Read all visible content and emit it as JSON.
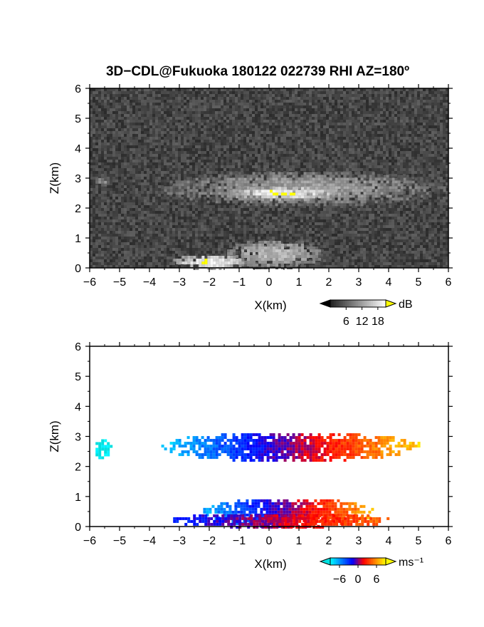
{
  "title": "3D−CDL@Fukuoka 180122 022739 RHI AZ=180º",
  "chart_data": [
    {
      "type": "heatmap",
      "panel": "reflectivity",
      "xlabel": "X(km)",
      "ylabel": "Z(km)",
      "xlim": [
        -6,
        6
      ],
      "ylim": [
        0,
        6
      ],
      "x_ticks": [
        "−6",
        "−5",
        "−4",
        "−3",
        "−2",
        "−1",
        "0",
        "1",
        "2",
        "3",
        "4",
        "5",
        "6"
      ],
      "y_ticks": [
        "0",
        "1",
        "2",
        "3",
        "4",
        "5",
        "6"
      ],
      "grid": false,
      "colorscale": "grayscale with yellow above max",
      "colorbar": {
        "unit": "dB",
        "ticks": [
          "6",
          "12",
          "18"
        ],
        "tick_values": [
          6,
          12,
          18
        ],
        "range": [
          0,
          21
        ],
        "colors": [
          "#202020",
          "#ffffff"
        ],
        "over_color": "#ffff00",
        "under_color": "#000000"
      },
      "features": [
        {
          "name": "cloud layer",
          "x_range": [
            -3.7,
            5.9
          ],
          "z_range": [
            2.1,
            3.3
          ],
          "value_db": 12
        },
        {
          "name": "saturated patches",
          "x_range": [
            -1.5,
            2.5
          ],
          "z_range": [
            2.3,
            2.8
          ],
          "value_db": 20
        },
        {
          "name": "left edge echo",
          "x_range": [
            -5.9,
            -5.3
          ],
          "z_range": [
            2.8,
            3.1
          ],
          "value_db": 10
        },
        {
          "name": "boundary layer fan",
          "x_range": [
            -1.5,
            1.8
          ],
          "z_range": [
            0,
            1.0
          ],
          "value_db": 14
        },
        {
          "name": "ground clutter",
          "x_range": [
            -3.3,
            -0.8
          ],
          "z_range": [
            0,
            0.5
          ],
          "value_db": 20
        }
      ]
    },
    {
      "type": "heatmap",
      "panel": "doppler velocity",
      "xlabel": "X(km)",
      "ylabel": "Z(km)",
      "xlim": [
        -6,
        6
      ],
      "ylim": [
        0,
        6
      ],
      "x_ticks": [
        "−6",
        "−5",
        "−4",
        "−3",
        "−2",
        "−1",
        "0",
        "1",
        "2",
        "3",
        "4",
        "5",
        "6"
      ],
      "y_ticks": [
        "0",
        "1",
        "2",
        "3",
        "4",
        "5",
        "6"
      ],
      "grid": false,
      "colorscale": "cyan-blue-red-yellow diverging",
      "colorbar": {
        "unit": "ms⁻¹",
        "ticks": [
          "−6",
          "0",
          "6"
        ],
        "tick_values": [
          -6,
          0,
          6
        ],
        "range": [
          -9,
          9
        ],
        "colors": [
          "#00ffff",
          "#0080ff",
          "#0000ff",
          "#ff0000",
          "#ff8000",
          "#ffff00"
        ],
        "under_color": "#00e0e0",
        "over_color": "#ffff00"
      },
      "features": [
        {
          "name": "upper layer",
          "x_range": [
            -3.7,
            5.1
          ],
          "z_range": [
            2.2,
            3.2
          ],
          "velocity_ms": [
            -8,
            8
          ]
        },
        {
          "name": "left edge echo",
          "x_range": [
            -5.9,
            -5.3
          ],
          "z_range": [
            2.3,
            3.0
          ],
          "velocity_ms": -9
        },
        {
          "name": "lower layer",
          "x_range": [
            -2.3,
            3.5
          ],
          "z_range": [
            0,
            1.0
          ],
          "velocity_ms": [
            -7,
            7
          ]
        },
        {
          "name": "ground strip",
          "x_range": [
            -3.4,
            4.1
          ],
          "z_range": [
            0,
            0.5
          ],
          "velocity_ms": [
            -3,
            5
          ]
        }
      ]
    }
  ]
}
